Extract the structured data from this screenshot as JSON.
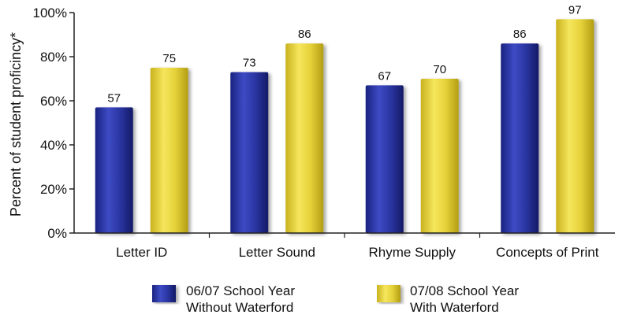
{
  "chart_data": {
    "type": "bar",
    "ylabel": "Percent of student proficincy*",
    "ylim": [
      0,
      100
    ],
    "yticks": [
      "0%",
      "20%",
      "40%",
      "60%",
      "80%",
      "100%"
    ],
    "ytick_values": [
      0,
      20,
      40,
      60,
      80,
      100
    ],
    "categories": [
      "Letter ID",
      "Letter Sound",
      "Rhyme Supply",
      "Concepts of Print"
    ],
    "series": [
      {
        "legend_line1": "06/07 School Year",
        "legend_line2": "Without Waterford",
        "color": "#2b36a3",
        "values": [
          57,
          73,
          67,
          86
        ]
      },
      {
        "legend_line1": "07/08 School Year",
        "legend_line2": "With Waterford",
        "color": "#e6d23a",
        "values": [
          75,
          86,
          70,
          97
        ]
      }
    ],
    "legend_position": "bottom",
    "grid": false
  }
}
